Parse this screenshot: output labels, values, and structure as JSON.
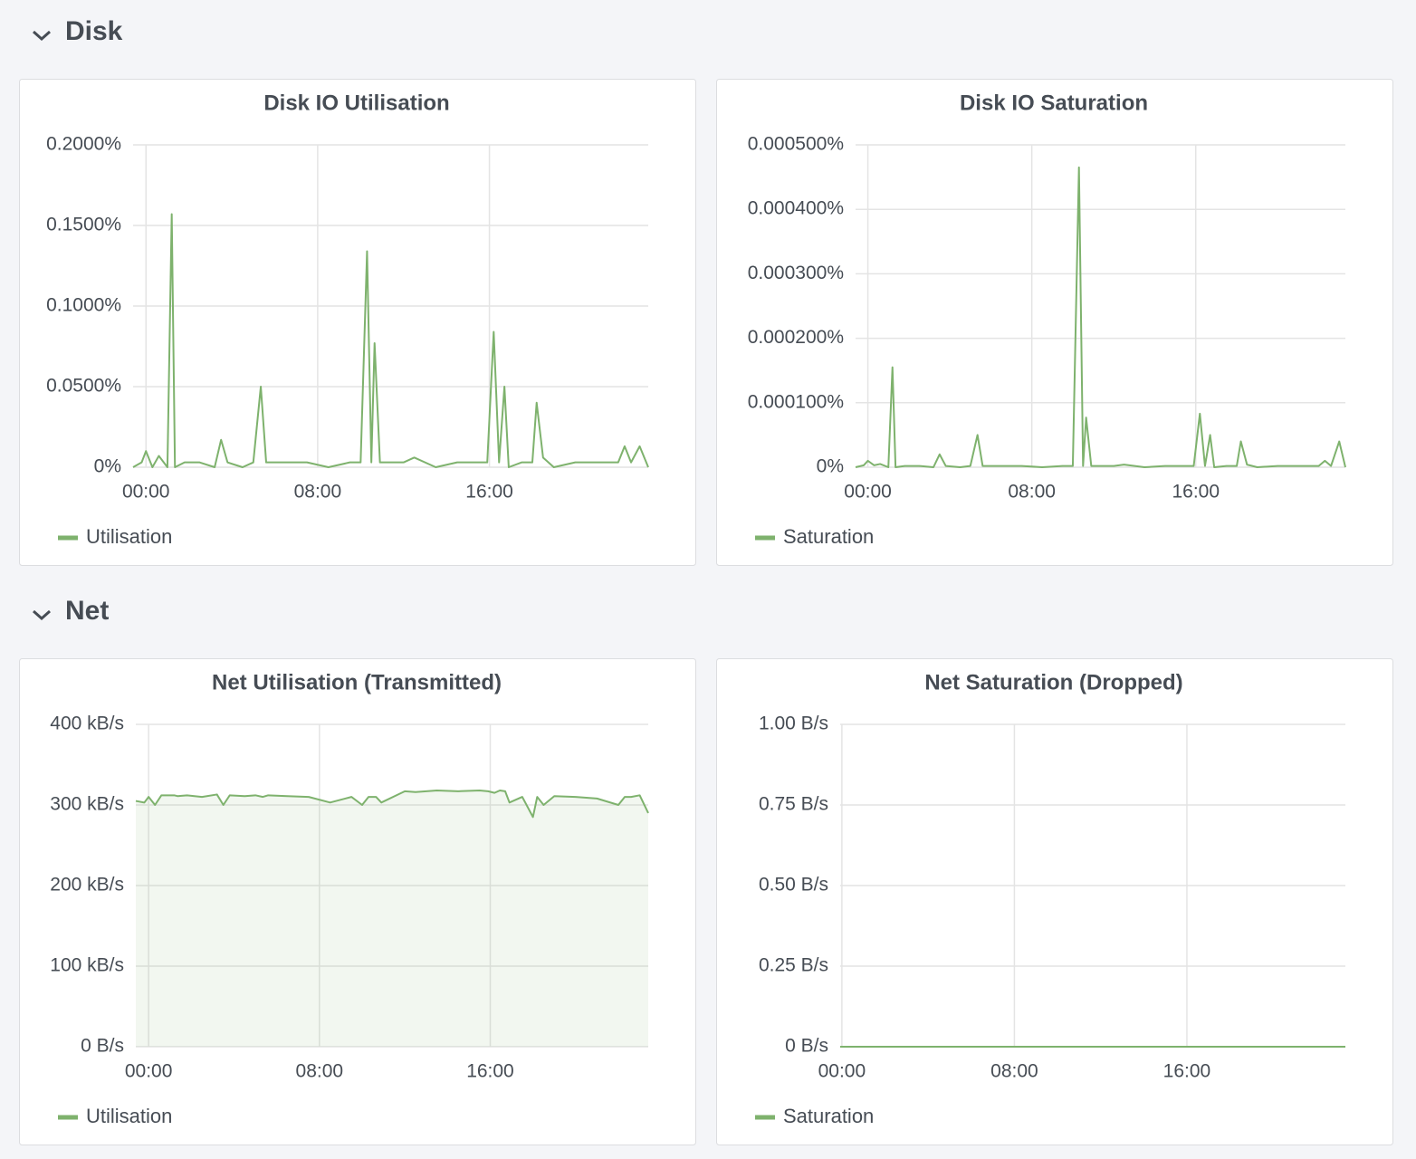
{
  "sections": [
    "Disk",
    "Net"
  ],
  "chart_data": [
    {
      "type": "line",
      "title": "Disk IO Utilisation",
      "x": [
        -0.6,
        -0.2,
        0,
        0.3,
        0.6,
        1.0,
        1.2,
        1.35,
        1.8,
        2.5,
        3.2,
        3.5,
        3.8,
        4.5,
        5.0,
        5.35,
        5.6,
        6.5,
        7.5,
        8.5,
        9.5,
        10.0,
        10.3,
        10.5,
        10.65,
        10.9,
        12,
        12.5,
        13.5,
        14.5,
        15.5,
        15.9,
        16.2,
        16.45,
        16.7,
        16.9,
        17.5,
        18.0,
        18.2,
        18.5,
        19,
        20,
        21,
        22,
        22.3,
        22.6,
        23,
        23.4
      ],
      "series": [
        {
          "name": "Utilisation",
          "color": "#7eb26d",
          "values": [
            0,
            0.003,
            0.01,
            0,
            0.007,
            0,
            0.157,
            0,
            0.003,
            0.003,
            0,
            0.017,
            0.003,
            0,
            0.003,
            0.05,
            0.003,
            0.003,
            0.003,
            0,
            0.003,
            0.003,
            0.134,
            0.003,
            0.077,
            0.003,
            0.003,
            0.006,
            0,
            0.003,
            0.003,
            0.003,
            0.084,
            0.003,
            0.05,
            0,
            0.003,
            0.003,
            0.04,
            0.006,
            0,
            0.003,
            0.003,
            0.003,
            0.013,
            0.003,
            0.013,
            0
          ]
        }
      ],
      "xlim": [
        -0.6,
        23.4
      ],
      "xticks": [
        {
          "value": 0,
          "label": "00:00"
        },
        {
          "value": 8,
          "label": "08:00"
        },
        {
          "value": 16,
          "label": "16:00"
        }
      ],
      "ylim": [
        0,
        0.2
      ],
      "yticks": [
        {
          "value": 0,
          "label": "0%"
        },
        {
          "value": 0.05,
          "label": "0.0500%"
        },
        {
          "value": 0.1,
          "label": "0.1000%"
        },
        {
          "value": 0.15,
          "label": "0.1500%"
        },
        {
          "value": 0.2,
          "label": "0.2000%"
        }
      ],
      "grid": true
    },
    {
      "type": "line",
      "title": "Disk IO Saturation",
      "x": [
        -0.6,
        -0.2,
        0,
        0.3,
        0.6,
        1.0,
        1.2,
        1.35,
        1.8,
        2.5,
        3.2,
        3.5,
        3.8,
        4.5,
        5.0,
        5.35,
        5.6,
        6.5,
        7.5,
        8.5,
        9.5,
        10.0,
        10.3,
        10.5,
        10.65,
        10.9,
        12,
        12.5,
        13.5,
        14.5,
        15.5,
        15.9,
        16.2,
        16.45,
        16.7,
        16.9,
        17.5,
        18.0,
        18.2,
        18.5,
        19,
        20,
        21,
        22,
        22.3,
        22.6,
        23,
        23.3
      ],
      "series": [
        {
          "name": "Saturation",
          "color": "#7eb26d",
          "values": [
            0,
            3e-06,
            1e-05,
            3e-06,
            5e-06,
            0,
            0.000155,
            0,
            2e-06,
            2e-06,
            0,
            2e-05,
            2e-06,
            0,
            2e-06,
            5e-05,
            2e-06,
            2e-06,
            2e-06,
            0,
            2e-06,
            2e-06,
            0.000465,
            2e-06,
            7.7e-05,
            2e-06,
            2e-06,
            4e-06,
            0,
            2e-06,
            2e-06,
            2e-06,
            8.3e-05,
            2e-06,
            5e-05,
            0,
            2e-06,
            2e-06,
            4e-05,
            4e-06,
            0,
            2e-06,
            2e-06,
            2e-06,
            1e-05,
            2e-06,
            4e-05,
            0
          ]
        }
      ],
      "xlim": [
        -0.6,
        23.3
      ],
      "xticks": [
        {
          "value": 0,
          "label": "00:00"
        },
        {
          "value": 8,
          "label": "08:00"
        },
        {
          "value": 16,
          "label": "16:00"
        }
      ],
      "ylim": [
        0,
        0.0005
      ],
      "yticks": [
        {
          "value": 0,
          "label": "0%"
        },
        {
          "value": 0.0001,
          "label": "0.000100%"
        },
        {
          "value": 0.0002,
          "label": "0.000200%"
        },
        {
          "value": 0.0003,
          "label": "0.000300%"
        },
        {
          "value": 0.0004,
          "label": "0.000400%"
        },
        {
          "value": 0.0005,
          "label": "0.000500%"
        }
      ],
      "grid": true
    },
    {
      "type": "area",
      "title": "Net Utilisation (Transmitted)",
      "x": [
        -0.6,
        -0.2,
        0,
        0.3,
        0.6,
        1.0,
        1.2,
        1.35,
        1.8,
        2.5,
        3.2,
        3.5,
        3.8,
        4.5,
        5.0,
        5.35,
        5.6,
        6.5,
        7.5,
        8.5,
        9.5,
        10.0,
        10.3,
        10.5,
        10.65,
        10.9,
        12,
        12.5,
        13.5,
        14.5,
        15.5,
        15.9,
        16.2,
        16.45,
        16.7,
        16.9,
        17.5,
        18.0,
        18.2,
        18.5,
        19,
        20,
        21,
        22,
        22.3,
        22.6,
        23,
        23.4
      ],
      "series": [
        {
          "name": "Utilisation",
          "color": "#7eb26d",
          "values": [
            305,
            303,
            310,
            300,
            312,
            312,
            312,
            311,
            312,
            310,
            313,
            300,
            312,
            311,
            312,
            310,
            312,
            311,
            310,
            303,
            310,
            300,
            310,
            310,
            310,
            303,
            317,
            316,
            318,
            317,
            318,
            317,
            315,
            318,
            317,
            303,
            310,
            285,
            310,
            300,
            311,
            310,
            308,
            300,
            310,
            310,
            312,
            290
          ]
        }
      ],
      "xlim": [
        -0.6,
        23.4
      ],
      "xticks": [
        {
          "value": 0,
          "label": "00:00"
        },
        {
          "value": 8,
          "label": "08:00"
        },
        {
          "value": 16,
          "label": "16:00"
        }
      ],
      "ylim": [
        0,
        400
      ],
      "yticks": [
        {
          "value": 0,
          "label": "0 B/s"
        },
        {
          "value": 100,
          "label": "100 kB/s"
        },
        {
          "value": 200,
          "label": "200 kB/s"
        },
        {
          "value": 300,
          "label": "300 kB/s"
        },
        {
          "value": 400,
          "label": "400 kB/s"
        }
      ],
      "grid": true
    },
    {
      "type": "line",
      "title": "Net Saturation (Dropped)",
      "x": [
        -0.08,
        6,
        12,
        18,
        23.35
      ],
      "series": [
        {
          "name": "Saturation",
          "color": "#7eb26d",
          "values": [
            0,
            0,
            0,
            0,
            0
          ]
        }
      ],
      "xlim": [
        -0.08,
        23.35
      ],
      "xticks": [
        {
          "value": 0,
          "label": "00:00"
        },
        {
          "value": 8,
          "label": "08:00"
        },
        {
          "value": 16,
          "label": "16:00"
        }
      ],
      "ylim": [
        0,
        1
      ],
      "yticks": [
        {
          "value": 0,
          "label": "0 B/s"
        },
        {
          "value": 0.25,
          "label": "0.25 B/s"
        },
        {
          "value": 0.5,
          "label": "0.50 B/s"
        },
        {
          "value": 0.75,
          "label": "0.75 B/s"
        },
        {
          "value": 1,
          "label": "1.00 B/s"
        }
      ],
      "grid": true
    }
  ]
}
